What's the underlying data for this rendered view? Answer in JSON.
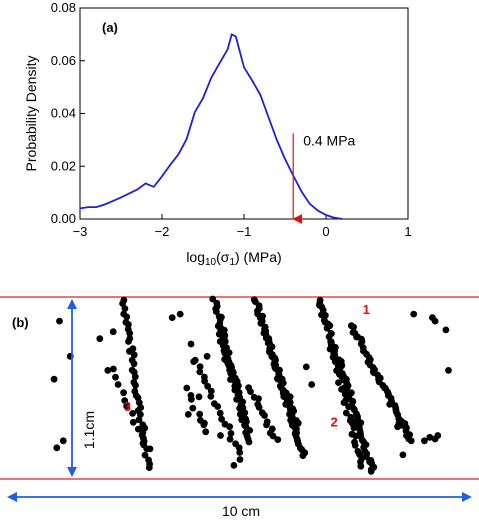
{
  "chart_data": [
    {
      "type": "line",
      "panel_label": "(a)",
      "xlabel": "log",
      "xlabel_sub": "10",
      "xlabel_rest": "(σ",
      "xlabel_sub2": "1",
      "xlabel_tail": ") (MPa)",
      "ylabel": "Probability Density",
      "xlim": [
        -3,
        1
      ],
      "ylim": [
        0,
        0.08
      ],
      "x_ticks": [
        -3,
        -2,
        -1,
        0,
        1
      ],
      "x_tick_labels": [
        "−3",
        "−2",
        "−1",
        "0",
        "1"
      ],
      "y_ticks": [
        0,
        0.02,
        0.04,
        0.06,
        0.08
      ],
      "y_tick_labels": [
        "0.00",
        "0.02",
        "0.04",
        "0.06",
        "0.08"
      ],
      "line_color": "#1f1fd6",
      "series": [
        {
          "x": [
            -3.0,
            -2.9,
            -2.8,
            -2.7,
            -2.6,
            -2.5,
            -2.4,
            -2.3,
            -2.2,
            -2.15,
            -2.1,
            -2.0,
            -1.9,
            -1.8,
            -1.7,
            -1.6,
            -1.5,
            -1.4,
            -1.3,
            -1.2,
            -1.15,
            -1.1,
            -1.0,
            -0.9,
            -0.8,
            -0.7,
            -0.6,
            -0.5,
            -0.4,
            -0.3,
            -0.2,
            -0.1,
            0.0,
            0.1,
            0.2
          ],
          "values": [
            0.004,
            0.0045,
            0.0045,
            0.0055,
            0.0068,
            0.0082,
            0.0097,
            0.0112,
            0.0135,
            0.0128,
            0.0122,
            0.0162,
            0.0205,
            0.0245,
            0.0303,
            0.0405,
            0.0458,
            0.0535,
            0.059,
            0.0643,
            0.07,
            0.0692,
            0.0575,
            0.0525,
            0.047,
            0.0385,
            0.03,
            0.0228,
            0.0165,
            0.0105,
            0.0058,
            0.0032,
            0.0015,
            0.0005,
            0.0
          ]
        }
      ],
      "annotation": {
        "text": "0.4 MPa",
        "x": -0.4,
        "y_from": 0.0325,
        "y_to": 0.0,
        "color": "#e01010"
      }
    },
    {
      "type": "scatter",
      "panel_label": "(b)",
      "boundary_color": "#e02020",
      "scale_color": "#1f5fe6",
      "height_label": "1.1cm",
      "width_label": "10 cm",
      "strand_labels": [
        {
          "text": "1",
          "x": 6.2,
          "y": 0.92
        },
        {
          "text": "2",
          "x": 5.6,
          "y": 0.28
        },
        {
          "text": "3",
          "x": 1.75,
          "y": 0.37
        }
      ],
      "label_color": "#e01010",
      "xlim": [
        0,
        8.2
      ],
      "ylim": [
        0,
        1.0
      ],
      "strands": [
        {
          "from": [
            1.75,
            1.0
          ],
          "to": [
            2.2,
            0.05
          ],
          "n": 40
        },
        {
          "from": [
            1.55,
            0.6
          ],
          "to": [
            2.2,
            0.15
          ],
          "n": 12
        },
        {
          "from": [
            3.45,
            1.0
          ],
          "to": [
            4.1,
            0.2
          ],
          "n": 55
        },
        {
          "from": [
            3.5,
            0.85
          ],
          "to": [
            4.0,
            0.3
          ],
          "n": 25
        },
        {
          "from": [
            4.2,
            1.0
          ],
          "to": [
            5.1,
            0.12
          ],
          "n": 60
        },
        {
          "from": [
            4.4,
            0.8
          ],
          "to": [
            5.0,
            0.25
          ],
          "n": 25
        },
        {
          "from": [
            5.4,
            1.0
          ],
          "to": [
            6.4,
            0.02
          ],
          "n": 65
        },
        {
          "from": [
            5.6,
            0.75
          ],
          "to": [
            6.2,
            0.05
          ],
          "n": 30
        },
        {
          "from": [
            6.0,
            0.85
          ],
          "to": [
            7.1,
            0.2
          ],
          "n": 50
        },
        {
          "from": [
            3.1,
            0.65
          ],
          "to": [
            3.95,
            0.1
          ],
          "n": 20
        },
        {
          "from": [
            4.1,
            0.5
          ],
          "to": [
            4.6,
            0.2
          ],
          "n": 14
        },
        {
          "from": [
            2.9,
            0.5
          ],
          "to": [
            3.3,
            0.25
          ],
          "n": 8
        }
      ],
      "scattered": [
        [
          0.55,
          0.88
        ],
        [
          0.75,
          0.68
        ],
        [
          0.45,
          0.55
        ],
        [
          0.62,
          0.2
        ],
        [
          0.5,
          0.16
        ],
        [
          1.3,
          0.78
        ],
        [
          1.55,
          0.82
        ],
        [
          1.45,
          0.6
        ],
        [
          2.65,
          0.9
        ],
        [
          2.8,
          0.92
        ],
        [
          3.0,
          0.75
        ],
        [
          3.05,
          0.65
        ],
        [
          3.15,
          0.45
        ],
        [
          2.95,
          0.35
        ],
        [
          3.25,
          0.3
        ],
        [
          3.8,
          0.06
        ],
        [
          4.7,
          0.55
        ],
        [
          4.85,
          0.45
        ],
        [
          5.0,
          0.3
        ],
        [
          5.15,
          0.62
        ],
        [
          5.25,
          0.52
        ],
        [
          7.15,
          0.92
        ],
        [
          7.5,
          0.9
        ],
        [
          7.55,
          0.88
        ],
        [
          7.75,
          0.83
        ],
        [
          7.8,
          0.6
        ],
        [
          7.45,
          0.22
        ],
        [
          7.35,
          0.2
        ],
        [
          7.55,
          0.21
        ],
        [
          7.6,
          0.23
        ],
        [
          3.55,
          0.23
        ],
        [
          3.3,
          0.68
        ],
        [
          6.95,
          0.12
        ],
        [
          6.85,
          0.28
        ]
      ]
    }
  ]
}
